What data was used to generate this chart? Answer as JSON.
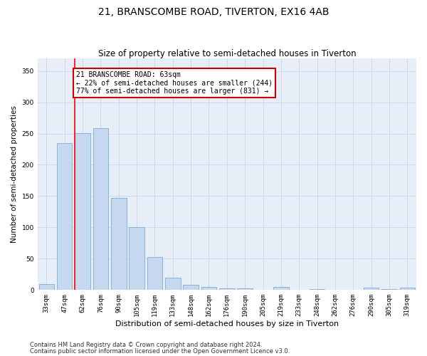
{
  "title": "21, BRANSCOMBE ROAD, TIVERTON, EX16 4AB",
  "subtitle": "Size of property relative to semi-detached houses in Tiverton",
  "xlabel": "Distribution of semi-detached houses by size in Tiverton",
  "ylabel": "Number of semi-detached properties",
  "categories": [
    "33sqm",
    "47sqm",
    "62sqm",
    "76sqm",
    "90sqm",
    "105sqm",
    "119sqm",
    "133sqm",
    "148sqm",
    "162sqm",
    "176sqm",
    "190sqm",
    "205sqm",
    "219sqm",
    "233sqm",
    "248sqm",
    "262sqm",
    "276sqm",
    "290sqm",
    "305sqm",
    "319sqm"
  ],
  "values": [
    9,
    235,
    251,
    259,
    147,
    100,
    53,
    20,
    8,
    5,
    3,
    3,
    0,
    5,
    0,
    2,
    0,
    0,
    4,
    2,
    4
  ],
  "bar_color": "#c5d8f0",
  "bar_edge_color": "#7aadd4",
  "bar_width": 0.85,
  "red_line_index": 2,
  "annotation_text": "21 BRANSCOMBE ROAD: 63sqm\n← 22% of semi-detached houses are smaller (244)\n77% of semi-detached houses are larger (831) →",
  "annotation_box_color": "#ffffff",
  "annotation_box_edge_color": "#cc0000",
  "ylim": [
    0,
    370
  ],
  "yticks": [
    0,
    50,
    100,
    150,
    200,
    250,
    300,
    350
  ],
  "grid_color": "#d0d8e8",
  "plot_bg_color": "#e8eef7",
  "footer_line1": "Contains HM Land Registry data © Crown copyright and database right 2024.",
  "footer_line2": "Contains public sector information licensed under the Open Government Licence v3.0.",
  "title_fontsize": 10,
  "subtitle_fontsize": 8.5,
  "xlabel_fontsize": 8,
  "ylabel_fontsize": 7.5,
  "tick_fontsize": 6.5,
  "annotation_fontsize": 7,
  "footer_fontsize": 6
}
